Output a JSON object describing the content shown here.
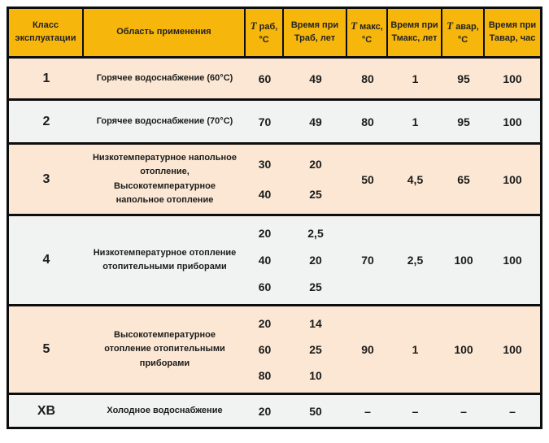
{
  "table": {
    "header": {
      "class_col": {
        "line1": "Класс",
        "line2": "эксплуатации"
      },
      "application_col": "Область применения",
      "t_rab": {
        "t": "T",
        "line1": "раб,",
        "line2": "°C"
      },
      "time_rab": {
        "line1": "Время при",
        "line2": "Траб, лет"
      },
      "t_max": {
        "t": "T",
        "line1": "макс,",
        "line2": "°C"
      },
      "time_max": {
        "line1": "Время при",
        "line2": "Тмакс, лет"
      },
      "t_avar": {
        "t": "T",
        "line1": "авар,",
        "line2": "°C"
      },
      "time_avar": {
        "line1": "Время при",
        "line2": "Тавар, час"
      }
    },
    "rows": [
      {
        "class": "1",
        "application": "Горячее водоснабжение (60°C)",
        "t_rab": [
          "60"
        ],
        "time_rab": [
          "49"
        ],
        "t_max": "80",
        "time_max": "1",
        "t_avar": "95",
        "time_avar": "100"
      },
      {
        "class": "2",
        "application": "Горячее водоснабжение (70°C)",
        "t_rab": [
          "70"
        ],
        "time_rab": [
          "49"
        ],
        "t_max": "80",
        "time_max": "1",
        "t_avar": "95",
        "time_avar": "100"
      },
      {
        "class": "3",
        "application": "Низкотемпературное напольное отопление, Высокотемпературное напольное отопление",
        "t_rab": [
          "30",
          "40"
        ],
        "time_rab": [
          "20",
          "25"
        ],
        "t_max": "50",
        "time_max": "4,5",
        "t_avar": "65",
        "time_avar": "100"
      },
      {
        "class": "4",
        "application": "Низкотемпературное отопление отопительными приборами",
        "t_rab": [
          "20",
          "40",
          "60"
        ],
        "time_rab": [
          "2,5",
          "20",
          "25"
        ],
        "t_max": "70",
        "time_max": "2,5",
        "t_avar": "100",
        "time_avar": "100"
      },
      {
        "class": "5",
        "application": "Высокотемпературное отопление отопительными приборами",
        "t_rab": [
          "20",
          "60",
          "80"
        ],
        "time_rab": [
          "14",
          "25",
          "10"
        ],
        "t_max": "90",
        "time_max": "1",
        "t_avar": "100",
        "time_avar": "100"
      },
      {
        "class": "ХВ",
        "application": "Холодное водоснабжение",
        "t_rab": [
          "20"
        ],
        "time_rab": [
          "50"
        ],
        "t_max": "–",
        "time_max": "–",
        "t_avar": "–",
        "time_avar": "–"
      }
    ],
    "colors": {
      "header_bg": "#f6b60b",
      "row_peach_bg": "#fbe7d3",
      "row_grey_bg": "#f1f2f2",
      "border": "#0d0d0d"
    }
  }
}
